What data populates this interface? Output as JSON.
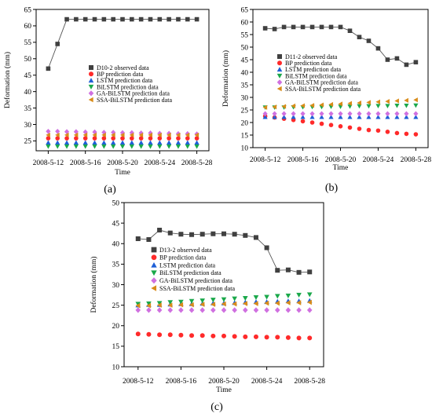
{
  "chart_data": [
    {
      "type": "scatter",
      "panel_label": "(a)",
      "xlabel": "Time",
      "ylabel": "Deformation (mm)",
      "x_ticks": [
        "2008-5-12",
        "2008-5-16",
        "2008-5-20",
        "2008-5-24",
        "2008-5-28"
      ],
      "x": [
        "2008-5-12",
        "2008-5-13",
        "2008-5-14",
        "2008-5-15",
        "2008-5-16",
        "2008-5-17",
        "2008-5-18",
        "2008-5-19",
        "2008-5-20",
        "2008-5-21",
        "2008-5-22",
        "2008-5-23",
        "2008-5-24",
        "2008-5-25",
        "2008-5-26",
        "2008-5-27",
        "2008-5-28"
      ],
      "ylim": [
        22,
        65
      ],
      "y_ticks": [
        25,
        30,
        35,
        40,
        45,
        50,
        55,
        60,
        65
      ],
      "legend_position": "center",
      "series": [
        {
          "name": "D10-2 observed data",
          "color": "#404040",
          "marker": "square",
          "line": true,
          "values": [
            47,
            54.5,
            62,
            62,
            62,
            62,
            62,
            62,
            62,
            62,
            62,
            62,
            62,
            62,
            62,
            62,
            62
          ]
        },
        {
          "name": "BP prediction data",
          "color": "#ff2a2a",
          "marker": "circle",
          "values": [
            25.8,
            25.8,
            25.8,
            25.8,
            25.8,
            25.8,
            25.8,
            25.8,
            25.8,
            25.8,
            25.8,
            25.8,
            25.8,
            25.8,
            25.8,
            25.8,
            25.8
          ]
        },
        {
          "name": "LSTM prediction data",
          "color": "#1f5fd6",
          "marker": "triangle-up",
          "values": [
            24.5,
            24.5,
            24.5,
            24.5,
            24.5,
            24.5,
            24.5,
            24.5,
            24.5,
            24.5,
            24.5,
            24.5,
            24.5,
            24.5,
            24.5,
            24.5,
            24.5
          ]
        },
        {
          "name": "BiLSTM prediction data",
          "color": "#1aa84a",
          "marker": "triangle-down",
          "values": [
            23.3,
            23.3,
            23.3,
            23.3,
            23.3,
            23.3,
            23.3,
            23.3,
            23.3,
            23.3,
            23.3,
            23.3,
            23.3,
            23.3,
            23.3,
            23.3,
            23.3
          ]
        },
        {
          "name": "GA-BiLSTM prediction data",
          "color": "#d070e0",
          "marker": "diamond",
          "values": [
            27.9,
            27.9,
            27.8,
            27.8,
            27.7,
            27.7,
            27.6,
            27.6,
            27.5,
            27.5,
            27.4,
            27.4,
            27.3,
            27.3,
            27.2,
            27.2,
            27.1
          ]
        },
        {
          "name": "SSA-BiLSTM prediction data",
          "color": "#d98c1a",
          "marker": "triangle-left",
          "values": [
            26.8,
            26.8,
            26.8,
            26.8,
            26.8,
            26.8,
            26.8,
            26.8,
            26.8,
            26.8,
            26.8,
            26.8,
            26.8,
            26.8,
            26.8,
            26.8,
            26.8
          ]
        }
      ]
    },
    {
      "type": "scatter",
      "panel_label": "(b)",
      "xlabel": "Time",
      "ylabel": "Deformation (mm)",
      "x_ticks": [
        "2008-5-12",
        "2008-5-16",
        "2008-5-20",
        "2008-5-24",
        "2008-5-28"
      ],
      "x": [
        "2008-5-12",
        "2008-5-13",
        "2008-5-14",
        "2008-5-15",
        "2008-5-16",
        "2008-5-17",
        "2008-5-18",
        "2008-5-19",
        "2008-5-20",
        "2008-5-21",
        "2008-5-22",
        "2008-5-23",
        "2008-5-24",
        "2008-5-25",
        "2008-5-26",
        "2008-5-27",
        "2008-5-28"
      ],
      "ylim": [
        10,
        65
      ],
      "y_ticks": [
        10,
        15,
        20,
        25,
        30,
        35,
        40,
        45,
        50,
        55,
        60,
        65
      ],
      "legend_position": "right",
      "series": [
        {
          "name": "D11-2 observed data",
          "color": "#404040",
          "marker": "square",
          "line": true,
          "values": [
            57.5,
            57.2,
            58,
            58,
            58,
            58,
            58,
            58,
            58,
            56.5,
            54,
            52.5,
            49.5,
            45,
            45.5,
            43,
            44
          ]
        },
        {
          "name": "BP prediction data",
          "color": "#ff2a2a",
          "marker": "circle",
          "values": [
            22.5,
            22,
            21.5,
            21,
            20.5,
            20,
            19.5,
            19,
            18.5,
            18,
            17.5,
            17,
            16.8,
            16.3,
            15.8,
            15.5,
            15.3
          ]
        },
        {
          "name": "LSTM prediction data",
          "color": "#1f5fd6",
          "marker": "triangle-up",
          "values": [
            22.2,
            22.2,
            22.2,
            22.2,
            22.2,
            22.2,
            22.2,
            22.2,
            22.2,
            22.2,
            22.2,
            22.2,
            22.2,
            22.2,
            22.2,
            22.2,
            22.2
          ]
        },
        {
          "name": "BiLSTM prediction data",
          "color": "#1aa84a",
          "marker": "triangle-down",
          "values": [
            26,
            26,
            26,
            26.1,
            26.1,
            26.2,
            26.2,
            26.3,
            26.3,
            26.4,
            26.5,
            26.5,
            26.6,
            26.6,
            26.7,
            26.7,
            26.8
          ]
        },
        {
          "name": "GA-BiLSTM prediction data",
          "color": "#d070e0",
          "marker": "diamond",
          "values": [
            23.5,
            23.5,
            23.5,
            23.5,
            23.5,
            23.5,
            23.5,
            23.5,
            23.5,
            23.5,
            23.5,
            23.5,
            23.5,
            23.5,
            23.5,
            23.5,
            23.5
          ]
        },
        {
          "name": "SSA-BiLSTM prediction data",
          "color": "#d98c1a",
          "marker": "triangle-left",
          "values": [
            26,
            26.2,
            26.4,
            26.6,
            26.7,
            26.8,
            27,
            27.2,
            27.4,
            27.6,
            27.8,
            28,
            28.2,
            28.4,
            28.6,
            28.8,
            29
          ]
        }
      ]
    },
    {
      "type": "scatter",
      "panel_label": "(c)",
      "xlabel": "Time",
      "ylabel": "Deformation (mm)",
      "x_ticks": [
        "2008-5-12",
        "2008-5-16",
        "2008-5-20",
        "2008-5-24",
        "2008-5-28"
      ],
      "x": [
        "2008-5-12",
        "2008-5-13",
        "2008-5-14",
        "2008-5-15",
        "2008-5-16",
        "2008-5-17",
        "2008-5-18",
        "2008-5-19",
        "2008-5-20",
        "2008-5-21",
        "2008-5-22",
        "2008-5-23",
        "2008-5-24",
        "2008-5-25",
        "2008-5-26",
        "2008-5-27",
        "2008-5-28"
      ],
      "ylim": [
        10,
        50
      ],
      "y_ticks": [
        10,
        15,
        20,
        25,
        30,
        35,
        40,
        45,
        50
      ],
      "legend_position": "center",
      "series": [
        {
          "name": "D13-2 observed data",
          "color": "#404040",
          "marker": "square",
          "line": true,
          "values": [
            41.2,
            41,
            43.3,
            42.6,
            42.3,
            42.2,
            42.3,
            42.4,
            42.4,
            42.3,
            42,
            41.5,
            39,
            33.5,
            33.6,
            33,
            33.1
          ]
        },
        {
          "name": "BP prediction data",
          "color": "#ff2a2a",
          "marker": "circle",
          "values": [
            18,
            17.9,
            17.8,
            17.8,
            17.7,
            17.6,
            17.6,
            17.5,
            17.5,
            17.4,
            17.3,
            17.3,
            17.2,
            17.2,
            17.1,
            17,
            17
          ]
        },
        {
          "name": "LSTM prediction data",
          "color": "#1f5fd6",
          "marker": "triangle-up",
          "values": [
            25,
            25.1,
            25.1,
            25.2,
            25.3,
            25.3,
            25.4,
            25.5,
            25.5,
            25.6,
            25.7,
            25.8,
            25.8,
            25.9,
            26,
            26,
            26.1
          ]
        },
        {
          "name": "BiLSTM prediction data",
          "color": "#1aa84a",
          "marker": "triangle-down",
          "values": [
            25.3,
            25.4,
            25.5,
            25.7,
            25.8,
            26,
            26.1,
            26.3,
            26.4,
            26.6,
            26.7,
            26.9,
            27,
            27.2,
            27.3,
            27.5,
            27.6
          ]
        },
        {
          "name": "GA-BiLSTM prediction data",
          "color": "#d070e0",
          "marker": "diamond",
          "values": [
            23.8,
            23.8,
            23.8,
            23.8,
            23.8,
            23.8,
            23.8,
            23.8,
            23.8,
            23.8,
            23.8,
            23.8,
            23.8,
            23.8,
            23.8,
            23.8,
            23.8
          ]
        },
        {
          "name": "SSA-BiLSTM prediction data",
          "color": "#d98c1a",
          "marker": "triangle-left",
          "values": [
            24.9,
            24.9,
            25,
            25,
            25.1,
            25.1,
            25.2,
            25.2,
            25.3,
            25.3,
            25.4,
            25.4,
            25.5,
            25.5,
            25.6,
            25.6,
            25.7
          ]
        }
      ]
    }
  ]
}
